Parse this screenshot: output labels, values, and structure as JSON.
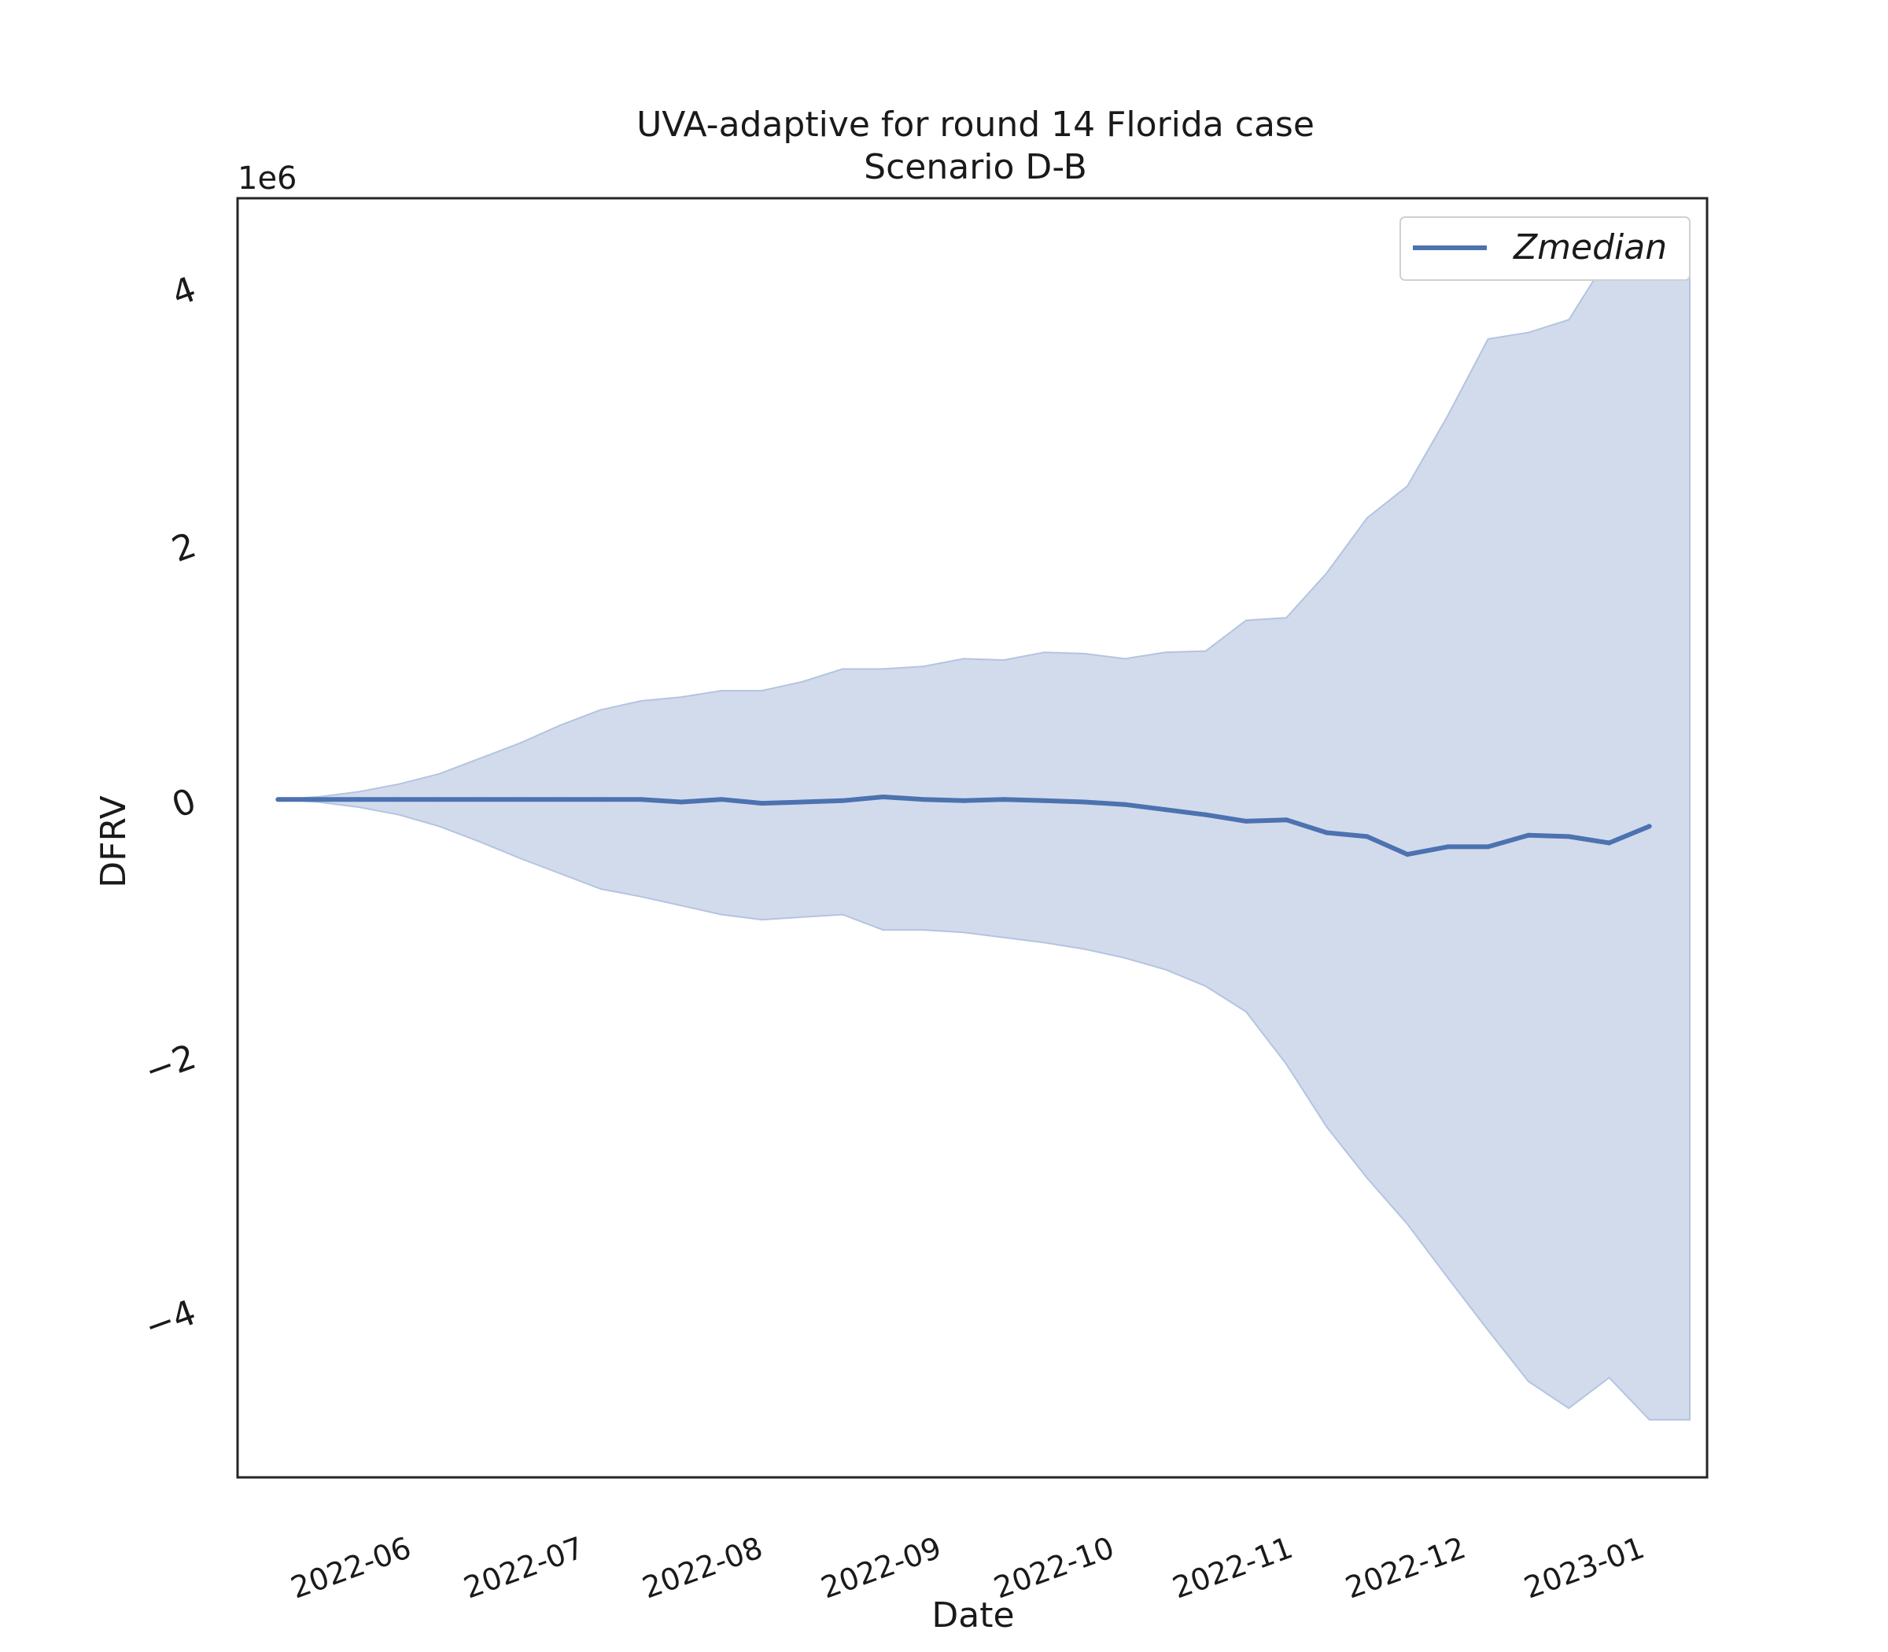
{
  "chart_data": {
    "type": "line",
    "title": "UVA-adaptive for round 14 Florida case",
    "subtitle": "Scenario D-B",
    "xlabel": "Date",
    "ylabel": "DFRV",
    "y_offset_label": "1e6",
    "xlim": [
      "2022-05-07",
      "2023-01-17"
    ],
    "ylim": [
      -5.3,
      4.7
    ],
    "x_ticks": [
      "2022-06",
      "2022-07",
      "2022-08",
      "2022-09",
      "2022-10",
      "2022-11",
      "2022-12",
      "2023-01"
    ],
    "y_ticks": [
      -4,
      -2,
      0,
      2,
      4
    ],
    "y_tick_labels": [
      "−4",
      "−2",
      "0",
      "2",
      "4"
    ],
    "grid": false,
    "legend": {
      "placement": "top-right",
      "entries": [
        "Zmedian"
      ]
    },
    "colors": {
      "line": "#4c72b0",
      "band": "#d2dbec",
      "band_edge": "#b4c4e0"
    },
    "series": [
      {
        "name": "Zmedian",
        "x": [
          "2022-05-14",
          "2022-05-21",
          "2022-05-28",
          "2022-06-04",
          "2022-06-11",
          "2022-06-18",
          "2022-06-25",
          "2022-07-02",
          "2022-07-09",
          "2022-07-16",
          "2022-07-23",
          "2022-07-30",
          "2022-08-06",
          "2022-08-13",
          "2022-08-20",
          "2022-08-27",
          "2022-09-03",
          "2022-09-10",
          "2022-09-17",
          "2022-09-24",
          "2022-10-01",
          "2022-10-08",
          "2022-10-15",
          "2022-10-22",
          "2022-10-29",
          "2022-11-05",
          "2022-11-12",
          "2022-11-19",
          "2022-11-26",
          "2022-12-03",
          "2022-12-10",
          "2022-12-17",
          "2022-12-24",
          "2022-12-31",
          "2023-01-07"
        ],
        "y": [
          0.0,
          0.0,
          0.0,
          0.0,
          0.0,
          0.0,
          0.0,
          0.0,
          0.0,
          0.0,
          -0.02,
          0.0,
          -0.03,
          -0.02,
          -0.01,
          0.02,
          0.0,
          -0.01,
          0.0,
          -0.01,
          -0.02,
          -0.04,
          -0.08,
          -0.12,
          -0.17,
          -0.16,
          -0.26,
          -0.29,
          -0.43,
          -0.37,
          -0.37,
          -0.28,
          -0.29,
          -0.34,
          -0.21
        ]
      }
    ],
    "band": {
      "x": [
        "2022-05-14",
        "2022-05-21",
        "2022-05-28",
        "2022-06-04",
        "2022-06-11",
        "2022-06-18",
        "2022-06-25",
        "2022-07-02",
        "2022-07-09",
        "2022-07-16",
        "2022-07-23",
        "2022-07-30",
        "2022-08-06",
        "2022-08-13",
        "2022-08-20",
        "2022-08-27",
        "2022-09-03",
        "2022-09-10",
        "2022-09-17",
        "2022-09-24",
        "2022-10-01",
        "2022-10-08",
        "2022-10-15",
        "2022-10-22",
        "2022-10-29",
        "2022-11-05",
        "2022-11-12",
        "2022-11-19",
        "2022-11-26",
        "2022-12-03",
        "2022-12-10",
        "2022-12-17",
        "2022-12-24",
        "2022-12-31",
        "2023-01-07"
      ],
      "upper": [
        0.0,
        0.02,
        0.06,
        0.12,
        0.2,
        0.32,
        0.44,
        0.58,
        0.7,
        0.77,
        0.8,
        0.85,
        0.85,
        0.92,
        1.02,
        1.02,
        1.04,
        1.1,
        1.09,
        1.15,
        1.14,
        1.1,
        1.15,
        1.16,
        1.4,
        1.42,
        1.77,
        2.2,
        2.45,
        3.0,
        3.6,
        3.65,
        3.75,
        4.25,
        4.4
      ],
      "lower": [
        0.0,
        -0.02,
        -0.06,
        -0.12,
        -0.21,
        -0.33,
        -0.46,
        -0.58,
        -0.7,
        -0.76,
        -0.83,
        -0.9,
        -0.94,
        -0.92,
        -0.9,
        -1.02,
        -1.02,
        -1.04,
        -1.08,
        -1.12,
        -1.17,
        -1.24,
        -1.33,
        -1.46,
        -1.66,
        -2.07,
        -2.56,
        -2.96,
        -3.32,
        -3.74,
        -4.15,
        -4.55,
        -4.76,
        -4.52,
        -4.85
      ],
      "lower_x_extra": "2023-01-14",
      "upper_x_extra": "2023-01-14"
    }
  }
}
